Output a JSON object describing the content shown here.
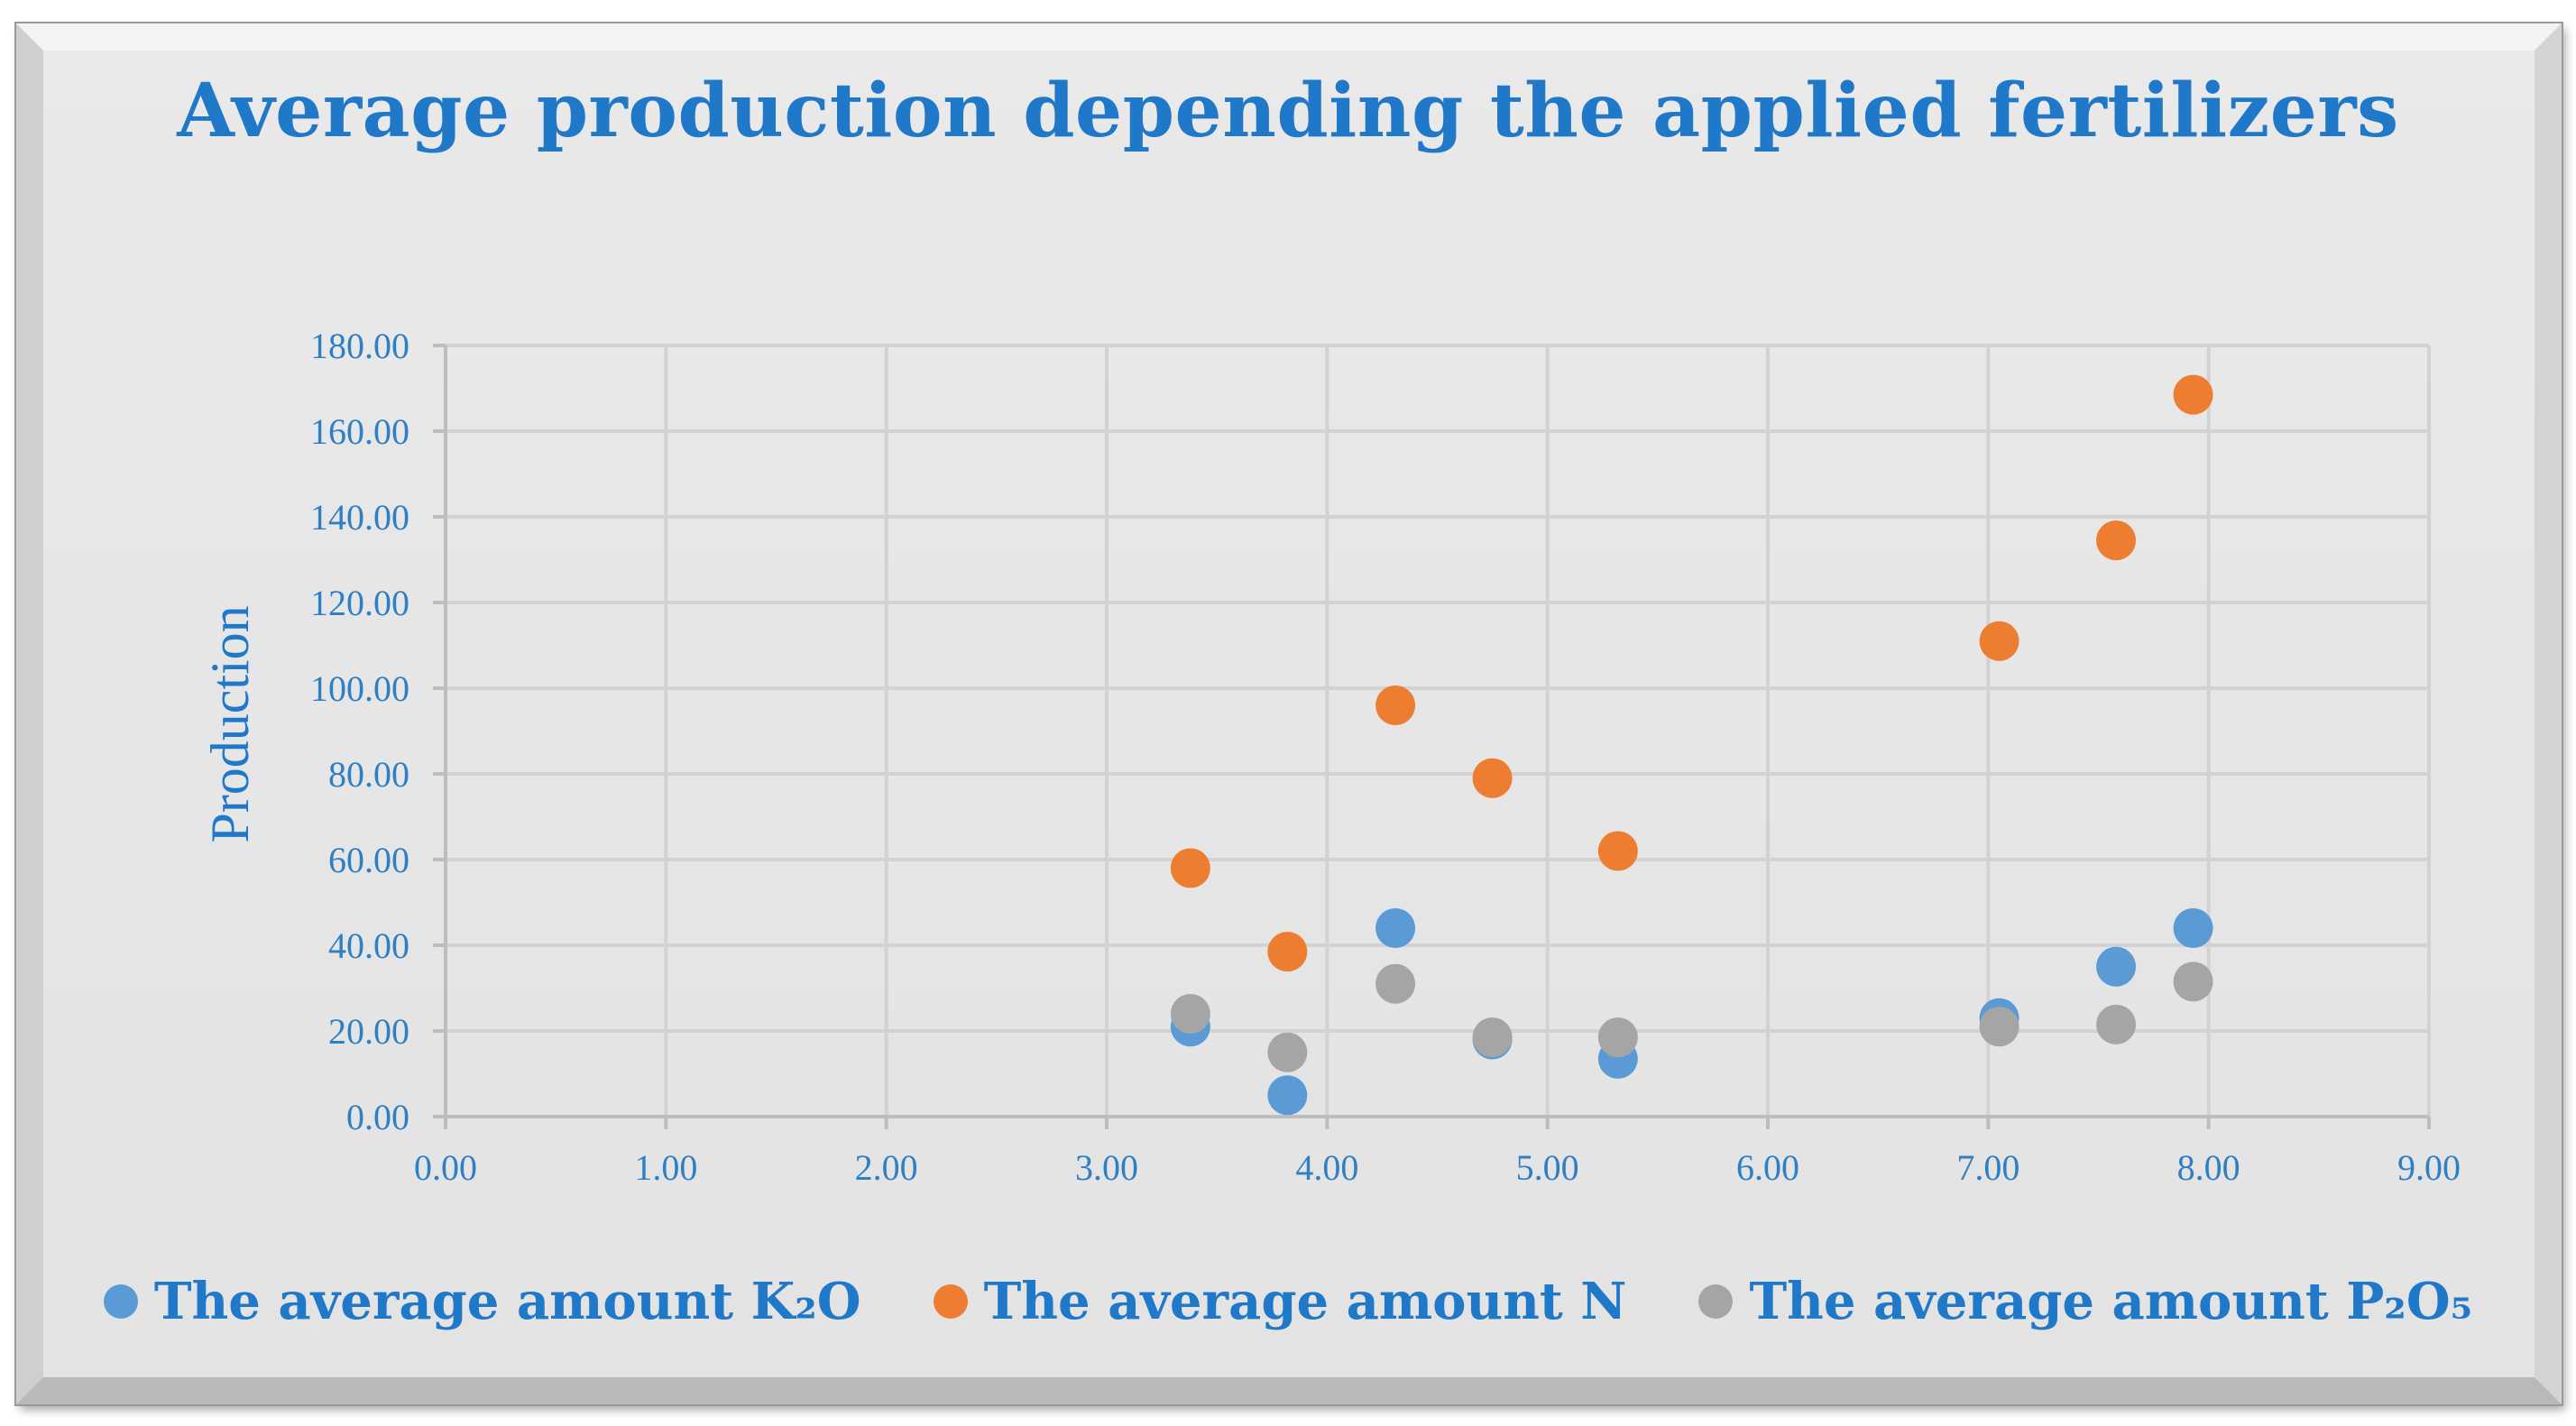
{
  "chart_data": {
    "type": "scatter",
    "title": "Average production depending the applied fertilizers",
    "xlabel": "",
    "ylabel": "Production",
    "xlim": [
      0,
      9
    ],
    "ylim": [
      0,
      180
    ],
    "x_ticks": [
      "0.00",
      "1.00",
      "2.00",
      "3.00",
      "4.00",
      "5.00",
      "6.00",
      "7.00",
      "8.00",
      "9.00"
    ],
    "y_ticks": [
      "0.00",
      "20.00",
      "40.00",
      "60.00",
      "80.00",
      "100.00",
      "120.00",
      "140.00",
      "160.00",
      "180.00"
    ],
    "grid": true,
    "legend_position": "bottom",
    "series": [
      {
        "name": "The average amount K₂O",
        "color": "#5b9bd5",
        "points": [
          [
            3.38,
            21
          ],
          [
            3.82,
            5
          ],
          [
            4.31,
            44
          ],
          [
            4.75,
            18
          ],
          [
            5.32,
            13.5
          ],
          [
            7.05,
            23
          ],
          [
            7.58,
            35
          ],
          [
            7.93,
            44
          ]
        ]
      },
      {
        "name": "The average amount N",
        "color": "#ed7d31",
        "points": [
          [
            3.38,
            58
          ],
          [
            3.82,
            38.5
          ],
          [
            4.31,
            96
          ],
          [
            4.75,
            79
          ],
          [
            5.32,
            62
          ],
          [
            7.05,
            111
          ],
          [
            7.58,
            134.5
          ],
          [
            7.93,
            168.5
          ]
        ]
      },
      {
        "name": "The average amount P₂O₅",
        "color": "#a5a5a5",
        "points": [
          [
            3.38,
            24
          ],
          [
            3.82,
            15
          ],
          [
            4.31,
            31
          ],
          [
            4.75,
            18.5
          ],
          [
            5.32,
            18.5
          ],
          [
            7.05,
            21
          ],
          [
            7.58,
            21.5
          ],
          [
            7.93,
            31.5
          ]
        ]
      }
    ]
  }
}
